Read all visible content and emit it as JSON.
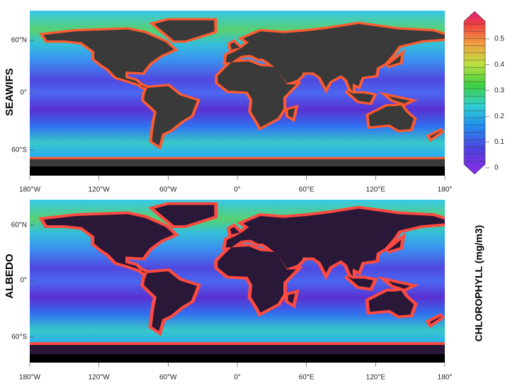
{
  "panels": [
    {
      "label": "SEAWIFS",
      "lat_labels": [
        "60°N",
        "0°",
        "60°S"
      ],
      "lon_labels": [
        "180°W",
        "120°W",
        "60°W",
        "0°",
        "60°E",
        "120°E",
        "180°"
      ]
    },
    {
      "label": "ALBEDO",
      "lat_labels": [
        "60°N",
        "0°",
        "60°S"
      ],
      "lon_labels": [
        "180°W",
        "120°W",
        "60°W",
        "0°",
        "60°E",
        "120°E",
        "180°"
      ]
    }
  ],
  "colorbar": {
    "title": "CHLOROPHYLL (mg/m3)",
    "ticks": [
      0.5,
      0.4,
      0.3,
      0.2,
      0.1,
      0
    ]
  }
}
